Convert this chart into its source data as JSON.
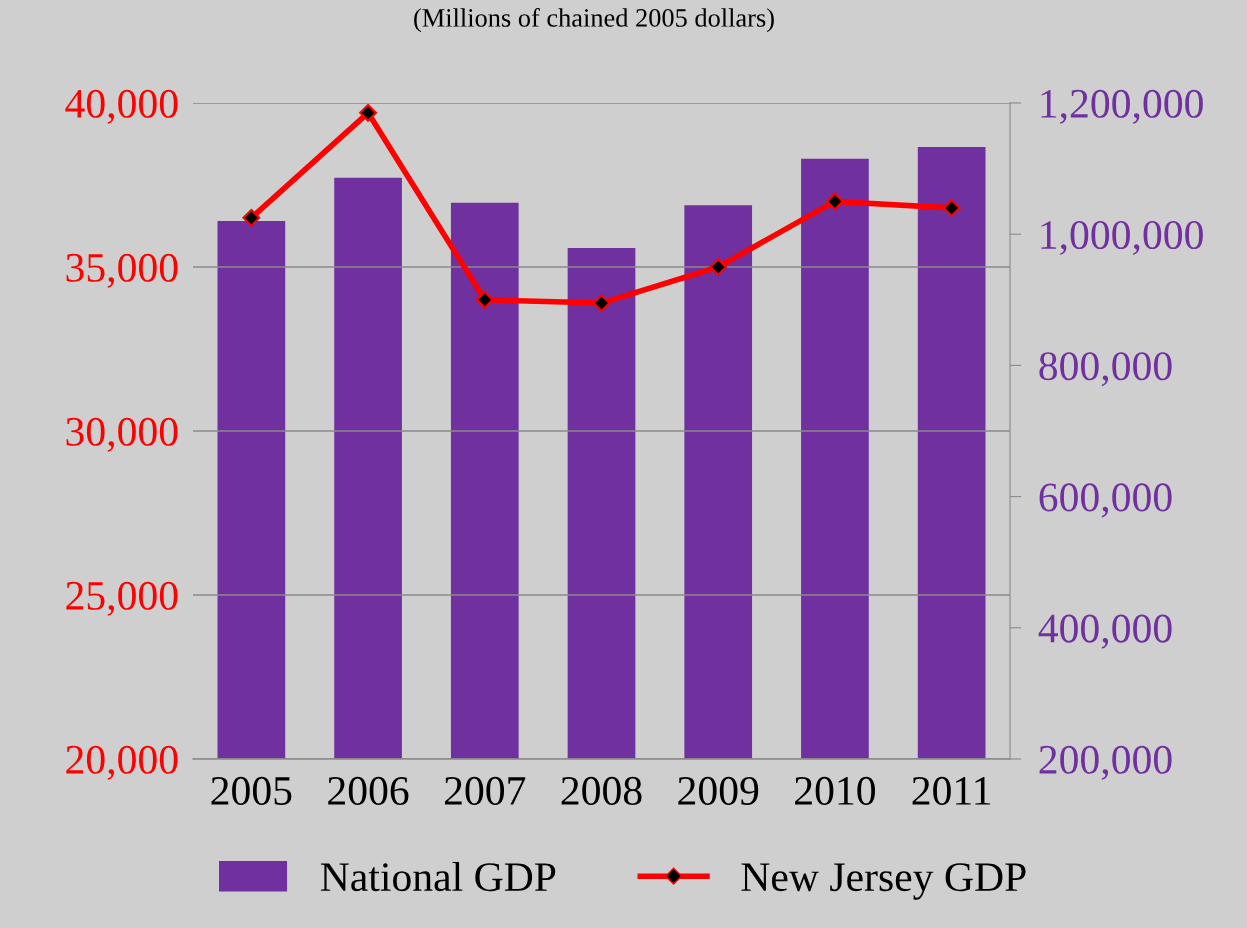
{
  "chart_data": {
    "type": "bar",
    "title": "(Millions of chained 2005 dollars)",
    "categories": [
      "2005",
      "2006",
      "2007",
      "2008",
      "2009",
      "2010",
      "2011"
    ],
    "series": [
      {
        "name": "National GDP",
        "axis": "y2",
        "color": "#7030a0",
        "values": [
          1020000,
          1086000,
          1048000,
          979000,
          1044000,
          1115000,
          1133000
        ]
      },
      {
        "name": "New Jersey GDP",
        "type": "line",
        "axis": "y",
        "color": "#ff0000",
        "marker": "diamond",
        "values": [
          36500,
          39700,
          34000,
          33900,
          35000,
          37000,
          36800
        ]
      }
    ],
    "ylim": [
      20000,
      40000
    ],
    "yticks": [
      {
        "value": 20000,
        "label": "20,000"
      },
      {
        "value": 25000,
        "label": "25,000"
      },
      {
        "value": 30000,
        "label": "30,000"
      },
      {
        "value": 35000,
        "label": "35,000"
      },
      {
        "value": 40000,
        "label": "40,000"
      }
    ],
    "y2lim": [
      200000,
      1200000
    ],
    "y2ticks": [
      {
        "value": 200000,
        "label": "200,000"
      },
      {
        "value": 400000,
        "label": "400,000"
      },
      {
        "value": 600000,
        "label": "600,000"
      },
      {
        "value": 800000,
        "label": "800,000"
      },
      {
        "value": 1000000,
        "label": "1,000,000"
      },
      {
        "value": 1200000,
        "label": "1,200,000"
      }
    ],
    "grid": "y",
    "legend": "bottom"
  }
}
